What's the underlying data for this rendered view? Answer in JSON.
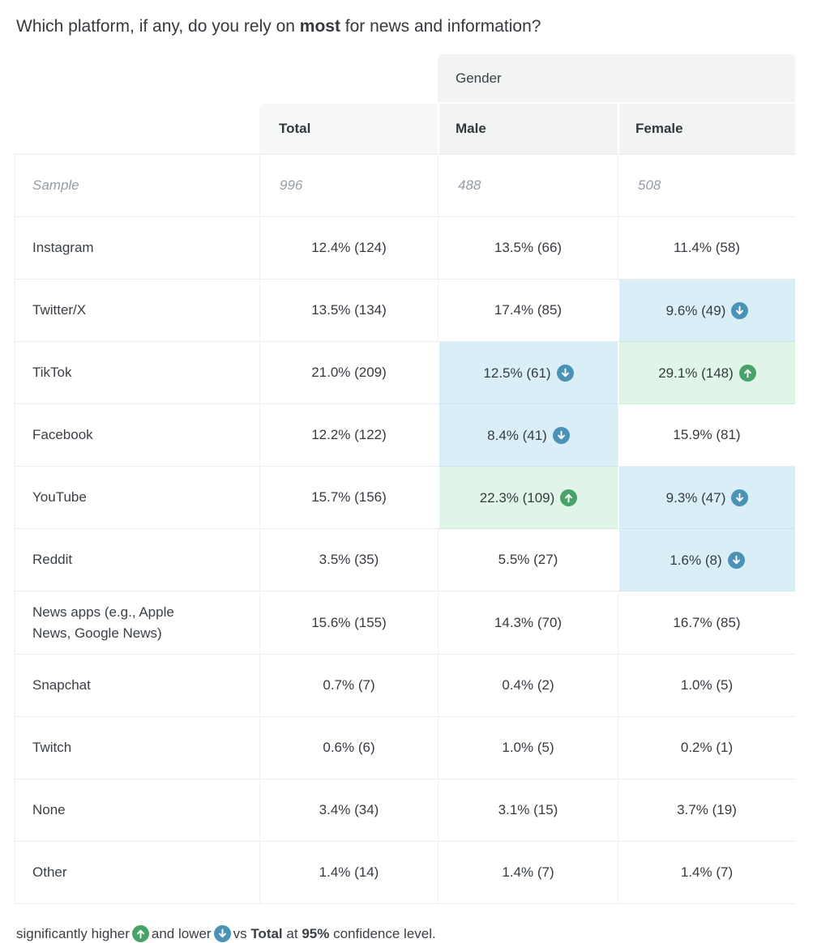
{
  "title": {
    "prefix": "Which platform, if any, do you rely on ",
    "bold": "most",
    "suffix": " for news and information?"
  },
  "table": {
    "group_header": "Gender",
    "columns": [
      "Total",
      "Male",
      "Female"
    ],
    "sample_row": {
      "label": "Sample",
      "values": [
        "996",
        "488",
        "508"
      ]
    },
    "rows": [
      {
        "label": "Instagram",
        "cells": [
          {
            "text": "12.4% (124)"
          },
          {
            "text": "13.5% (66)"
          },
          {
            "text": "11.4% (58)"
          }
        ]
      },
      {
        "label": "Twitter/X",
        "cells": [
          {
            "text": "13.5% (134)"
          },
          {
            "text": "17.4% (85)"
          },
          {
            "text": "9.6% (49)",
            "sig": "lower"
          }
        ]
      },
      {
        "label": "TikTok",
        "cells": [
          {
            "text": "21.0% (209)"
          },
          {
            "text": "12.5% (61)",
            "sig": "lower"
          },
          {
            "text": "29.1% (148)",
            "sig": "higher"
          }
        ]
      },
      {
        "label": "Facebook",
        "cells": [
          {
            "text": "12.2% (122)"
          },
          {
            "text": "8.4% (41)",
            "sig": "lower"
          },
          {
            "text": "15.9% (81)"
          }
        ]
      },
      {
        "label": "YouTube",
        "cells": [
          {
            "text": "15.7% (156)"
          },
          {
            "text": "22.3% (109)",
            "sig": "higher"
          },
          {
            "text": "9.3% (47)",
            "sig": "lower"
          }
        ]
      },
      {
        "label": "Reddit",
        "cells": [
          {
            "text": "3.5% (35)"
          },
          {
            "text": "5.5% (27)"
          },
          {
            "text": "1.6% (8)",
            "sig": "lower"
          }
        ]
      },
      {
        "label": "News apps (e.g., Apple News, Google News)",
        "cells": [
          {
            "text": "15.6% (155)"
          },
          {
            "text": "14.3% (70)"
          },
          {
            "text": "16.7% (85)"
          }
        ],
        "tall": true
      },
      {
        "label": "Snapchat",
        "cells": [
          {
            "text": "0.7% (7)"
          },
          {
            "text": "0.4% (2)"
          },
          {
            "text": "1.0% (5)"
          }
        ]
      },
      {
        "label": "Twitch",
        "cells": [
          {
            "text": "0.6% (6)"
          },
          {
            "text": "1.0% (5)"
          },
          {
            "text": "0.2% (1)"
          }
        ]
      },
      {
        "label": "None",
        "cells": [
          {
            "text": "3.4% (34)"
          },
          {
            "text": "3.1% (15)"
          },
          {
            "text": "3.7% (19)"
          }
        ]
      },
      {
        "label": "Other",
        "cells": [
          {
            "text": "1.4% (14)"
          },
          {
            "text": "1.4% (7)"
          },
          {
            "text": "1.4% (7)"
          }
        ]
      }
    ]
  },
  "footnote": {
    "part1": "significantly higher",
    "part2": "and lower",
    "part3": "vs",
    "bold1": "Total",
    "part4": "at",
    "bold2": "95%",
    "part5": "confidence level."
  },
  "icons": {
    "higher": "up-arrow-circle-icon",
    "lower": "down-arrow-circle-icon"
  },
  "colors": {
    "sig_higher": "#47a368",
    "sig_lower": "#4a92b6",
    "sig_higher_bg": "#e0f4e7",
    "sig_lower_bg": "#d9eef6",
    "header_gray": "#f2f3f3",
    "header_total": "#f6f9f8"
  }
}
